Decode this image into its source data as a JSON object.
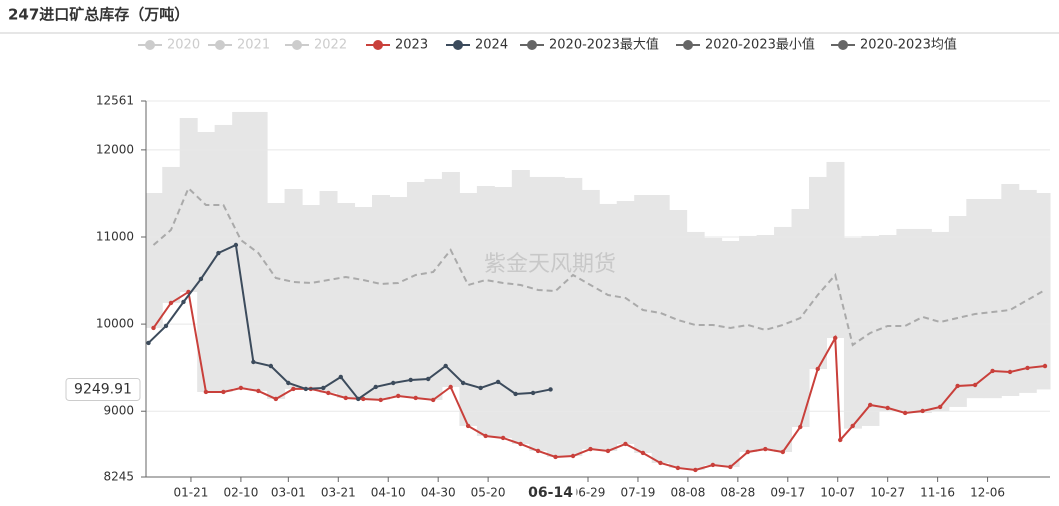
{
  "chart_data": {
    "type": "line",
    "title": "247进口矿总库存（万吨）",
    "watermark": "紫金天风期货",
    "xlim": [
      3,
      365
    ],
    "xticks": [
      {
        "value": 21,
        "label": "01-21"
      },
      {
        "value": 41,
        "label": "02-10"
      },
      {
        "value": 60,
        "label": "03-01"
      },
      {
        "value": 80,
        "label": "03-21"
      },
      {
        "value": 100,
        "label": "04-10"
      },
      {
        "value": 120,
        "label": "04-30"
      },
      {
        "value": 140,
        "label": "05-20"
      },
      {
        "value": 180,
        "label": "06-29"
      },
      {
        "value": 200,
        "label": "07-19"
      },
      {
        "value": 220,
        "label": "08-08"
      },
      {
        "value": 240,
        "label": "08-28"
      },
      {
        "value": 260,
        "label": "09-17"
      },
      {
        "value": 280,
        "label": "10-07"
      },
      {
        "value": 300,
        "label": "10-27"
      },
      {
        "value": 320,
        "label": "11-16"
      },
      {
        "value": 340,
        "label": "12-06"
      }
    ],
    "ylim": [
      8245,
      12561
    ],
    "yticks": [
      8245,
      9000,
      10000,
      11000,
      12000,
      12561
    ],
    "grid": true,
    "pointer": {
      "x": 165,
      "x_label": "06-14",
      "y": 9249.91
    },
    "series": [
      {
        "name": "2020",
        "color": "#cccccc",
        "hidden": true,
        "x": [],
        "values": []
      },
      {
        "name": "2021",
        "color": "#cccccc",
        "hidden": true,
        "x": [],
        "values": []
      },
      {
        "name": "2022",
        "color": "#cccccc",
        "hidden": true,
        "x": [],
        "values": []
      },
      {
        "name": "2023",
        "color": "#c9403b",
        "style": "line",
        "x": [
          6,
          13,
          20,
          27,
          34,
          41,
          48,
          55,
          62,
          69,
          76,
          83,
          90,
          97,
          104,
          111,
          118,
          125,
          132,
          139,
          146,
          153,
          160,
          167,
          174,
          181,
          188,
          195,
          202,
          209,
          216,
          223,
          230,
          237,
          244,
          251,
          258,
          265,
          272,
          279,
          281,
          286,
          293,
          300,
          307,
          314,
          321,
          328,
          335,
          342,
          349,
          356,
          363
        ],
        "values": [
          9956,
          10243,
          10369,
          9221,
          9221,
          9267,
          9233,
          9141,
          9256,
          9256,
          9210,
          9152,
          9141,
          9130,
          9175,
          9152,
          9130,
          9278,
          8831,
          8716,
          8693,
          8624,
          8544,
          8475,
          8486,
          8566,
          8544,
          8624,
          8521,
          8406,
          8349,
          8326,
          8383,
          8360,
          8532,
          8566,
          8532,
          8819,
          9485,
          9841,
          8670,
          8831,
          9072,
          9038,
          8980,
          9003,
          9049,
          9290,
          9301,
          9462,
          9451,
          9497,
          9519
        ]
      },
      {
        "name": "2024",
        "color": "#3c4b5c",
        "style": "line",
        "x": [
          4,
          11,
          18,
          25,
          32,
          39,
          46,
          53,
          60,
          67,
          74,
          81,
          88,
          95,
          102,
          109,
          116,
          123,
          130,
          137,
          144,
          151,
          158,
          165
        ],
        "values": [
          9784,
          9979,
          10254,
          10518,
          10816,
          10908,
          9565,
          9519,
          9324,
          9256,
          9267,
          9393,
          9141,
          9279,
          9324,
          9359,
          9370,
          9520,
          9324,
          9267,
          9336,
          9198,
          9210,
          9249.91
        ]
      },
      {
        "name": "2020-2023最大值",
        "color": "#666666",
        "style": "band-top",
        "fill": "#e6e6e6",
        "x": [
          6,
          13,
          20,
          27,
          34,
          41,
          48,
          55,
          62,
          69,
          76,
          83,
          90,
          97,
          104,
          111,
          118,
          125,
          132,
          139,
          146,
          153,
          160,
          167,
          174,
          181,
          188,
          195,
          202,
          209,
          216,
          223,
          230,
          237,
          244,
          251,
          258,
          265,
          272,
          279,
          286,
          293,
          300,
          307,
          314,
          321,
          328,
          335,
          342,
          349,
          356,
          363
        ],
        "values": [
          11505,
          11804,
          12366,
          12205,
          12286,
          12435,
          12435,
          11390,
          11551,
          11367,
          11528,
          11390,
          11344,
          11482,
          11459,
          11631,
          11666,
          11746,
          11505,
          11585,
          11574,
          11769,
          11689,
          11689,
          11678,
          11540,
          11379,
          11413,
          11482,
          11482,
          11310,
          11058,
          10989,
          10954,
          11012,
          11023,
          11115,
          11321,
          11689,
          11861,
          10989,
          11012,
          11023,
          11092,
          11092,
          11058,
          11241,
          11436,
          11436,
          11608,
          11540,
          11505
        ]
      },
      {
        "name": "2020-2023最小值",
        "color": "#666666",
        "style": "band-bottom",
        "x": [
          6,
          13,
          20,
          27,
          34,
          41,
          48,
          55,
          62,
          69,
          76,
          83,
          90,
          97,
          104,
          111,
          118,
          125,
          132,
          139,
          146,
          153,
          160,
          167,
          174,
          181,
          188,
          195,
          202,
          209,
          216,
          223,
          230,
          237,
          244,
          251,
          258,
          265,
          272,
          279,
          286,
          293,
          300,
          307,
          314,
          321,
          328,
          335,
          342,
          349,
          356,
          363
        ],
        "values": [
          9956,
          10243,
          10369,
          9221,
          9221,
          9267,
          9233,
          9141,
          9256,
          9256,
          9210,
          9152,
          9141,
          9130,
          9175,
          9152,
          9130,
          9278,
          8831,
          8716,
          8693,
          8624,
          8544,
          8475,
          8486,
          8566,
          8544,
          8624,
          8521,
          8406,
          8349,
          8326,
          8383,
          8360,
          8532,
          8566,
          8532,
          8819,
          9485,
          9841,
          8800,
          8831,
          9000,
          9000,
          8980,
          9003,
          9049,
          9150,
          9150,
          9175,
          9210,
          9250
        ]
      },
      {
        "name": "2020-2023均值",
        "color": "#666666",
        "style": "dashed",
        "line_color": "#aaaaaa",
        "x": [
          6,
          13,
          20,
          27,
          34,
          41,
          48,
          55,
          62,
          69,
          76,
          83,
          90,
          97,
          104,
          111,
          118,
          125,
          132,
          139,
          146,
          153,
          160,
          167,
          174,
          181,
          188,
          195,
          202,
          209,
          216,
          223,
          230,
          237,
          244,
          251,
          258,
          265,
          272,
          279,
          286,
          293,
          300,
          307,
          314,
          321,
          328,
          335,
          342,
          349,
          356,
          363
        ],
        "values": [
          10908,
          11081,
          11560,
          11367,
          11367,
          10965,
          10816,
          10529,
          10484,
          10472,
          10506,
          10541,
          10506,
          10461,
          10472,
          10564,
          10598,
          10851,
          10449,
          10506,
          10472,
          10449,
          10392,
          10380,
          10564,
          10449,
          10334,
          10300,
          10162,
          10128,
          10047,
          9990,
          9990,
          9956,
          9990,
          9933,
          9990,
          10070,
          10334,
          10564,
          9761,
          9898,
          9979,
          9979,
          10082,
          10024,
          10070,
          10116,
          10139,
          10162,
          10277,
          10392
        ]
      }
    ]
  }
}
